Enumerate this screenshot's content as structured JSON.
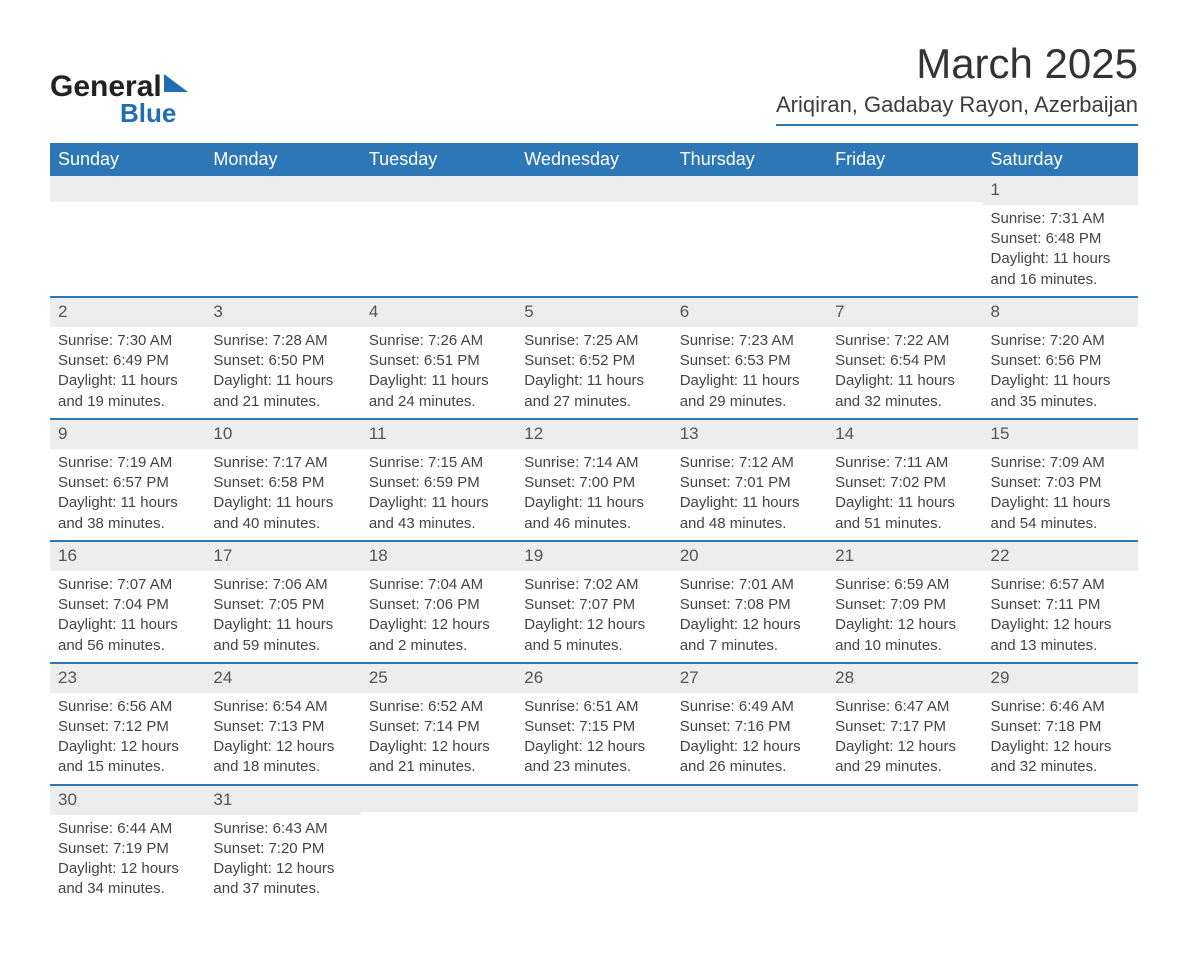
{
  "brand": {
    "word1": "General",
    "word2": "Blue"
  },
  "header": {
    "month_title": "March 2025",
    "location": "Ariqiran, Gadabay Rayon, Azerbaijan"
  },
  "calendar": {
    "type": "table",
    "columns": [
      "Sunday",
      "Monday",
      "Tuesday",
      "Wednesday",
      "Thursday",
      "Friday",
      "Saturday"
    ],
    "header_bg": "#2d77b6",
    "header_text_color": "#ffffff",
    "daynum_bg": "#ededed",
    "row_border_color": "#2d77b6",
    "body_text_color": "#444444",
    "font_family": "Arial",
    "header_fontsize": 18,
    "daynum_fontsize": 17,
    "body_fontsize": 15,
    "weeks": [
      [
        null,
        null,
        null,
        null,
        null,
        null,
        {
          "n": "1",
          "sr": "Sunrise: 7:31 AM",
          "ss": "Sunset: 6:48 PM",
          "d1": "Daylight: 11 hours",
          "d2": "and 16 minutes."
        }
      ],
      [
        {
          "n": "2",
          "sr": "Sunrise: 7:30 AM",
          "ss": "Sunset: 6:49 PM",
          "d1": "Daylight: 11 hours",
          "d2": "and 19 minutes."
        },
        {
          "n": "3",
          "sr": "Sunrise: 7:28 AM",
          "ss": "Sunset: 6:50 PM",
          "d1": "Daylight: 11 hours",
          "d2": "and 21 minutes."
        },
        {
          "n": "4",
          "sr": "Sunrise: 7:26 AM",
          "ss": "Sunset: 6:51 PM",
          "d1": "Daylight: 11 hours",
          "d2": "and 24 minutes."
        },
        {
          "n": "5",
          "sr": "Sunrise: 7:25 AM",
          "ss": "Sunset: 6:52 PM",
          "d1": "Daylight: 11 hours",
          "d2": "and 27 minutes."
        },
        {
          "n": "6",
          "sr": "Sunrise: 7:23 AM",
          "ss": "Sunset: 6:53 PM",
          "d1": "Daylight: 11 hours",
          "d2": "and 29 minutes."
        },
        {
          "n": "7",
          "sr": "Sunrise: 7:22 AM",
          "ss": "Sunset: 6:54 PM",
          "d1": "Daylight: 11 hours",
          "d2": "and 32 minutes."
        },
        {
          "n": "8",
          "sr": "Sunrise: 7:20 AM",
          "ss": "Sunset: 6:56 PM",
          "d1": "Daylight: 11 hours",
          "d2": "and 35 minutes."
        }
      ],
      [
        {
          "n": "9",
          "sr": "Sunrise: 7:19 AM",
          "ss": "Sunset: 6:57 PM",
          "d1": "Daylight: 11 hours",
          "d2": "and 38 minutes."
        },
        {
          "n": "10",
          "sr": "Sunrise: 7:17 AM",
          "ss": "Sunset: 6:58 PM",
          "d1": "Daylight: 11 hours",
          "d2": "and 40 minutes."
        },
        {
          "n": "11",
          "sr": "Sunrise: 7:15 AM",
          "ss": "Sunset: 6:59 PM",
          "d1": "Daylight: 11 hours",
          "d2": "and 43 minutes."
        },
        {
          "n": "12",
          "sr": "Sunrise: 7:14 AM",
          "ss": "Sunset: 7:00 PM",
          "d1": "Daylight: 11 hours",
          "d2": "and 46 minutes."
        },
        {
          "n": "13",
          "sr": "Sunrise: 7:12 AM",
          "ss": "Sunset: 7:01 PM",
          "d1": "Daylight: 11 hours",
          "d2": "and 48 minutes."
        },
        {
          "n": "14",
          "sr": "Sunrise: 7:11 AM",
          "ss": "Sunset: 7:02 PM",
          "d1": "Daylight: 11 hours",
          "d2": "and 51 minutes."
        },
        {
          "n": "15",
          "sr": "Sunrise: 7:09 AM",
          "ss": "Sunset: 7:03 PM",
          "d1": "Daylight: 11 hours",
          "d2": "and 54 minutes."
        }
      ],
      [
        {
          "n": "16",
          "sr": "Sunrise: 7:07 AM",
          "ss": "Sunset: 7:04 PM",
          "d1": "Daylight: 11 hours",
          "d2": "and 56 minutes."
        },
        {
          "n": "17",
          "sr": "Sunrise: 7:06 AM",
          "ss": "Sunset: 7:05 PM",
          "d1": "Daylight: 11 hours",
          "d2": "and 59 minutes."
        },
        {
          "n": "18",
          "sr": "Sunrise: 7:04 AM",
          "ss": "Sunset: 7:06 PM",
          "d1": "Daylight: 12 hours",
          "d2": "and 2 minutes."
        },
        {
          "n": "19",
          "sr": "Sunrise: 7:02 AM",
          "ss": "Sunset: 7:07 PM",
          "d1": "Daylight: 12 hours",
          "d2": "and 5 minutes."
        },
        {
          "n": "20",
          "sr": "Sunrise: 7:01 AM",
          "ss": "Sunset: 7:08 PM",
          "d1": "Daylight: 12 hours",
          "d2": "and 7 minutes."
        },
        {
          "n": "21",
          "sr": "Sunrise: 6:59 AM",
          "ss": "Sunset: 7:09 PM",
          "d1": "Daylight: 12 hours",
          "d2": "and 10 minutes."
        },
        {
          "n": "22",
          "sr": "Sunrise: 6:57 AM",
          "ss": "Sunset: 7:11 PM",
          "d1": "Daylight: 12 hours",
          "d2": "and 13 minutes."
        }
      ],
      [
        {
          "n": "23",
          "sr": "Sunrise: 6:56 AM",
          "ss": "Sunset: 7:12 PM",
          "d1": "Daylight: 12 hours",
          "d2": "and 15 minutes."
        },
        {
          "n": "24",
          "sr": "Sunrise: 6:54 AM",
          "ss": "Sunset: 7:13 PM",
          "d1": "Daylight: 12 hours",
          "d2": "and 18 minutes."
        },
        {
          "n": "25",
          "sr": "Sunrise: 6:52 AM",
          "ss": "Sunset: 7:14 PM",
          "d1": "Daylight: 12 hours",
          "d2": "and 21 minutes."
        },
        {
          "n": "26",
          "sr": "Sunrise: 6:51 AM",
          "ss": "Sunset: 7:15 PM",
          "d1": "Daylight: 12 hours",
          "d2": "and 23 minutes."
        },
        {
          "n": "27",
          "sr": "Sunrise: 6:49 AM",
          "ss": "Sunset: 7:16 PM",
          "d1": "Daylight: 12 hours",
          "d2": "and 26 minutes."
        },
        {
          "n": "28",
          "sr": "Sunrise: 6:47 AM",
          "ss": "Sunset: 7:17 PM",
          "d1": "Daylight: 12 hours",
          "d2": "and 29 minutes."
        },
        {
          "n": "29",
          "sr": "Sunrise: 6:46 AM",
          "ss": "Sunset: 7:18 PM",
          "d1": "Daylight: 12 hours",
          "d2": "and 32 minutes."
        }
      ],
      [
        {
          "n": "30",
          "sr": "Sunrise: 6:44 AM",
          "ss": "Sunset: 7:19 PM",
          "d1": "Daylight: 12 hours",
          "d2": "and 34 minutes."
        },
        {
          "n": "31",
          "sr": "Sunrise: 6:43 AM",
          "ss": "Sunset: 7:20 PM",
          "d1": "Daylight: 12 hours",
          "d2": "and 37 minutes."
        },
        null,
        null,
        null,
        null,
        null
      ]
    ]
  }
}
